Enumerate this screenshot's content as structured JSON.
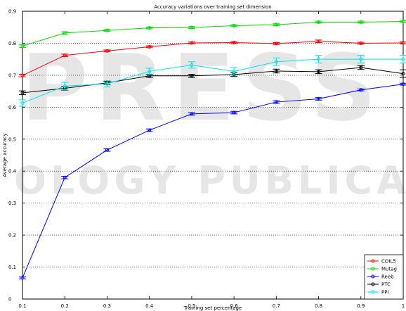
{
  "watermark": {
    "line1": "PRESS",
    "line2": "OLOGY PUBLICATIONS"
  },
  "chart_data": {
    "type": "line",
    "title": "Accuracy variations over training set dimension",
    "xlabel": "Training set percentage",
    "ylabel": "Average accuracy",
    "xlim": [
      0.1,
      1.0
    ],
    "ylim": [
      0,
      0.9
    ],
    "x": [
      0.1,
      0.2,
      0.3,
      0.4,
      0.5,
      0.6,
      0.7,
      0.8,
      0.9,
      1.0
    ],
    "xticks": [
      "0.1",
      "0.2",
      "0.3",
      "0.4",
      "0.5",
      "0.6",
      "0.7",
      "0.8",
      "0.9",
      "1"
    ],
    "yticks": [
      "0",
      "0.1",
      "0.2",
      "0.3",
      "0.4",
      "0.5",
      "0.6",
      "0.7",
      "0.8",
      "0.9"
    ],
    "grid": true,
    "legend_position": "bottom-right",
    "series": [
      {
        "name": "COIL5",
        "color": "#ff0000",
        "values": [
          0.699,
          0.762,
          0.776,
          0.789,
          0.801,
          0.802,
          0.799,
          0.806,
          0.8,
          0.801
        ],
        "errors": [
          0.004,
          0.004,
          0.003,
          0.003,
          0.003,
          0.003,
          0.003,
          0.004,
          0.003,
          0.003
        ]
      },
      {
        "name": "Mutag",
        "color": "#00dd00",
        "values": [
          0.791,
          0.832,
          0.84,
          0.848,
          0.849,
          0.855,
          0.858,
          0.866,
          0.866,
          0.868
        ],
        "errors": [
          0.004,
          0.004,
          0.003,
          0.003,
          0.003,
          0.003,
          0.003,
          0.003,
          0.003,
          0.003
        ]
      },
      {
        "name": "Reeb",
        "color": "#0000ff",
        "values": [
          0.066,
          0.38,
          0.466,
          0.528,
          0.579,
          0.583,
          0.616,
          0.626,
          0.654,
          0.672
        ],
        "errors": [
          0.003,
          0.004,
          0.004,
          0.004,
          0.004,
          0.004,
          0.004,
          0.004,
          0.003,
          0.003
        ]
      },
      {
        "name": "PTC",
        "color": "#000000",
        "values": [
          0.645,
          0.659,
          0.676,
          0.698,
          0.698,
          0.702,
          0.713,
          0.711,
          0.724,
          0.705
        ],
        "errors": [
          0.006,
          0.006,
          0.005,
          0.005,
          0.005,
          0.006,
          0.006,
          0.006,
          0.006,
          0.012
        ]
      },
      {
        "name": "PPI",
        "color": "#00e5e5",
        "values": [
          0.613,
          0.666,
          0.673,
          0.712,
          0.732,
          0.712,
          0.742,
          0.75,
          0.75,
          0.75
        ],
        "errors": [
          0.01,
          0.012,
          0.01,
          0.01,
          0.01,
          0.012,
          0.012,
          0.012,
          0.012,
          0.012
        ]
      }
    ]
  }
}
